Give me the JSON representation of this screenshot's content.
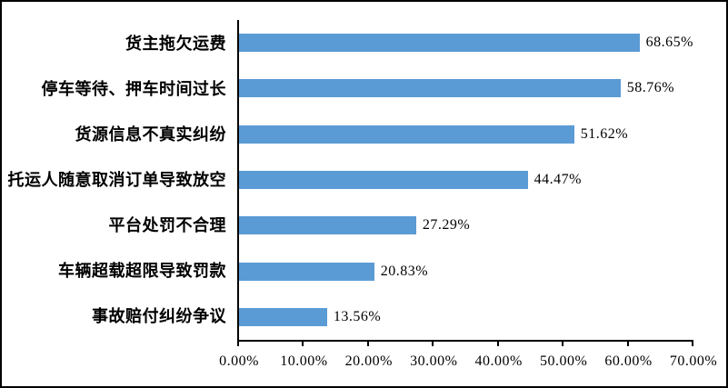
{
  "figure": {
    "background": "#ffffff",
    "border_color": "#000000"
  },
  "chart_data": {
    "type": "bar",
    "orientation": "horizontal",
    "title": "",
    "xlabel": "",
    "ylabel": "",
    "categories": [
      "货主拖欠运费",
      "停车等待、押车时间过长",
      "货源信息不真实纠纷",
      "托运人随意取消订单导致放空",
      "平台处罚不合理",
      "车辆超载超限导致罚款",
      "事故赔付纠纷争议"
    ],
    "values": [
      68.65,
      58.76,
      51.62,
      44.47,
      27.29,
      20.83,
      13.56
    ],
    "value_labels": [
      "68.65%",
      "58.76%",
      "51.62%",
      "44.47%",
      "27.29%",
      "20.83%",
      "13.56%"
    ],
    "xlim": [
      0,
      70
    ],
    "x_tick_labels": [
      "0.00%",
      "10.00%",
      "20.00%",
      "30.00%",
      "40.00%",
      "50.00%",
      "60.00%",
      "70.00%"
    ],
    "bar_color": "#5B9BD5",
    "axis_color": "#000000",
    "grid": false,
    "legend": false
  }
}
